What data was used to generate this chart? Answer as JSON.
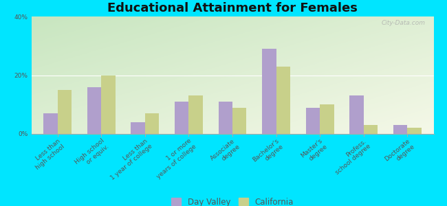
{
  "title": "Educational Attainment for Females",
  "categories": [
    "Less than\nhigh school",
    "High school\nor equiv.",
    "Less than\n1 year of college",
    "1 or more\nyears of college",
    "Associate\ndegree",
    "Bachelor's\ndegree",
    "Master's\ndegree",
    "Profess.\nschool degree",
    "Doctorate\ndegree"
  ],
  "day_valley": [
    7,
    16,
    4,
    11,
    11,
    29,
    9,
    13,
    3
  ],
  "california": [
    15,
    20,
    7,
    13,
    9,
    23,
    10,
    3,
    2
  ],
  "day_valley_color": "#b09fcc",
  "california_color": "#c8d08a",
  "bg_color_topleft": "#c8e6c0",
  "bg_color_bottomright": "#f5f8e8",
  "outer_bg": "#00e5ff",
  "ylim": [
    0,
    40
  ],
  "yticks": [
    0,
    20,
    40
  ],
  "ytick_labels": [
    "0%",
    "20%",
    "40%"
  ],
  "legend_day_valley": "Day Valley",
  "legend_california": "California",
  "title_fontsize": 13,
  "tick_fontsize": 6.5,
  "legend_fontsize": 8.5,
  "watermark": "City-Data.com"
}
